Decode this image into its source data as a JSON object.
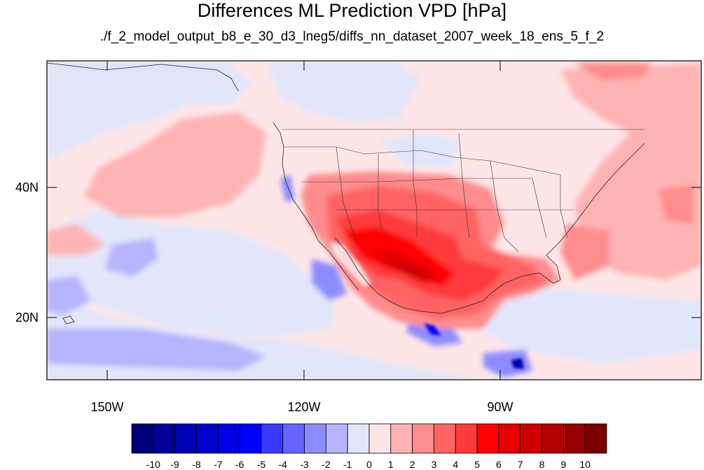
{
  "title": "Differences ML Prediction VPD [hPa]",
  "subtitle": "./f_2_model_output_b8_e_30_d3_lneg5/diffs_nn_dataset_2007_week_18_ens_5_f_2",
  "map": {
    "projection": "cylindrical equidistant",
    "lat_range": [
      "10N",
      "59N"
    ],
    "lon_range": [
      "160W",
      "60W"
    ],
    "lat_ticks": [
      "40N",
      "20N"
    ],
    "lon_ticks": [
      "150W",
      "120W",
      "90W"
    ],
    "field": "VPD difference",
    "units": "hPa"
  },
  "colorbar": {
    "labels": [
      "-10",
      "-9",
      "-8",
      "-7",
      "-6",
      "-5",
      "-4",
      "-3",
      "-2",
      "-1",
      "0",
      "1",
      "2",
      "3",
      "4",
      "5",
      "6",
      "7",
      "8",
      "9",
      "10"
    ],
    "colors": [
      "#00007a",
      "#000096",
      "#0000b4",
      "#0000cc",
      "#0000e6",
      "#0000ff",
      "#3a3aff",
      "#6464ff",
      "#8c8cff",
      "#b4b4ff",
      "#e1e6fa",
      "#ffe6e6",
      "#ffb4b4",
      "#ff8c8c",
      "#ff6464",
      "#ff3a3a",
      "#ff0000",
      "#e60000",
      "#cc0000",
      "#b40000",
      "#960000",
      "#7a0000"
    ]
  }
}
